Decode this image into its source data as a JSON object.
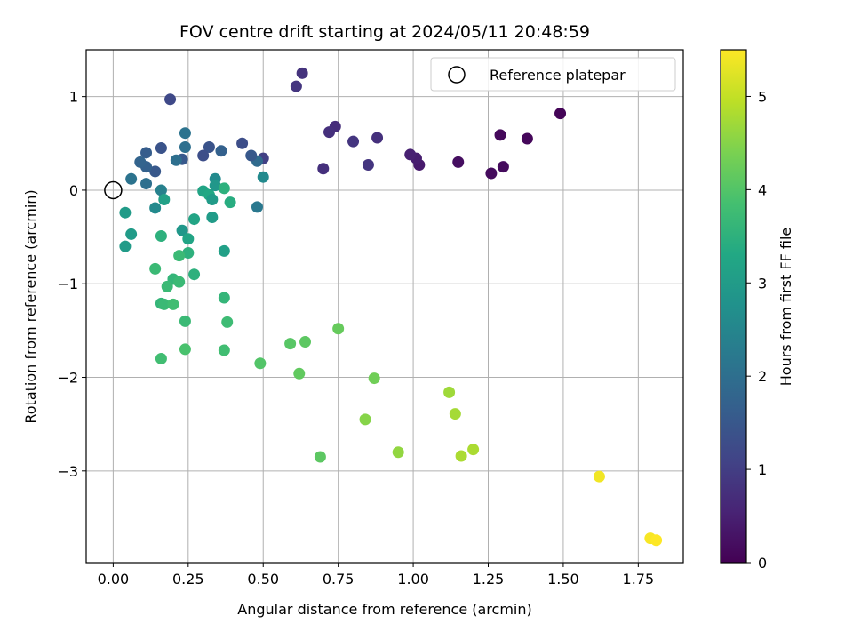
{
  "chart_data": {
    "type": "scatter",
    "title": "FOV centre drift starting at 2024/05/11 20:48:59",
    "xlabel": "Angular distance from reference (arcmin)",
    "ylabel": "Rotation from reference (arcmin)",
    "xlim": [
      -0.09,
      1.9
    ],
    "ylim": [
      -3.98,
      1.5
    ],
    "xticks": [
      0.0,
      0.25,
      0.5,
      0.75,
      1.0,
      1.25,
      1.5,
      1.75
    ],
    "xtick_labels": [
      "0.00",
      "0.25",
      "0.50",
      "0.75",
      "1.00",
      "1.25",
      "1.50",
      "1.75"
    ],
    "yticks": [
      1,
      0,
      -1,
      -2,
      -3
    ],
    "ytick_labels": [
      "1",
      "0",
      "−1",
      "−2",
      "−3"
    ],
    "grid": true,
    "legend": {
      "placement": "top-right",
      "entries": [
        "Reference platepar"
      ]
    },
    "reference_point": {
      "x": 0.0,
      "y": 0.0,
      "marker": "open-circle"
    },
    "colorbar": {
      "label": "Hours from first FF file",
      "min": 0,
      "max": 5.5,
      "ticks": [
        0,
        1,
        2,
        3,
        4,
        5
      ],
      "tick_labels": [
        "0",
        "1",
        "2",
        "3",
        "4",
        "5"
      ],
      "colormap": "viridis"
    },
    "points": [
      {
        "x": 1.49,
        "y": 0.82,
        "c": 0.05
      },
      {
        "x": 1.38,
        "y": 0.55,
        "c": 0.1
      },
      {
        "x": 1.29,
        "y": 0.59,
        "c": 0.12
      },
      {
        "x": 1.3,
        "y": 0.25,
        "c": 0.15
      },
      {
        "x": 1.26,
        "y": 0.18,
        "c": 0.15
      },
      {
        "x": 1.15,
        "y": 0.3,
        "c": 0.2
      },
      {
        "x": 1.02,
        "y": 0.27,
        "c": 0.4
      },
      {
        "x": 1.01,
        "y": 0.34,
        "c": 0.45
      },
      {
        "x": 0.99,
        "y": 0.38,
        "c": 0.5
      },
      {
        "x": 0.88,
        "y": 0.56,
        "c": 0.75
      },
      {
        "x": 0.85,
        "y": 0.27,
        "c": 0.85
      },
      {
        "x": 0.8,
        "y": 0.52,
        "c": 0.85
      },
      {
        "x": 0.74,
        "y": 0.68,
        "c": 0.7
      },
      {
        "x": 0.72,
        "y": 0.62,
        "c": 0.75
      },
      {
        "x": 0.7,
        "y": 0.23,
        "c": 0.75
      },
      {
        "x": 0.63,
        "y": 1.25,
        "c": 0.8
      },
      {
        "x": 0.61,
        "y": 1.11,
        "c": 0.85
      },
      {
        "x": 0.5,
        "y": 0.34,
        "c": 1.05
      },
      {
        "x": 0.5,
        "y": 0.14,
        "c": 2.6
      },
      {
        "x": 0.48,
        "y": 0.31,
        "c": 1.9
      },
      {
        "x": 0.48,
        "y": -0.18,
        "c": 2.2
      },
      {
        "x": 0.46,
        "y": 0.37,
        "c": 1.5
      },
      {
        "x": 0.43,
        "y": 0.5,
        "c": 1.3
      },
      {
        "x": 0.36,
        "y": 0.42,
        "c": 1.7
      },
      {
        "x": 0.32,
        "y": 0.46,
        "c": 1.4
      },
      {
        "x": 0.3,
        "y": 0.37,
        "c": 1.3
      },
      {
        "x": 0.24,
        "y": 0.46,
        "c": 2.0
      },
      {
        "x": 0.24,
        "y": 0.61,
        "c": 2.1
      },
      {
        "x": 0.23,
        "y": 0.33,
        "c": 1.5
      },
      {
        "x": 0.21,
        "y": 0.32,
        "c": 2.0
      },
      {
        "x": 0.19,
        "y": 0.97,
        "c": 1.2
      },
      {
        "x": 0.16,
        "y": 0.45,
        "c": 1.4
      },
      {
        "x": 0.14,
        "y": 0.2,
        "c": 1.5
      },
      {
        "x": 0.11,
        "y": 0.4,
        "c": 1.6
      },
      {
        "x": 0.11,
        "y": 0.25,
        "c": 1.7
      },
      {
        "x": 0.09,
        "y": 0.3,
        "c": 1.75
      },
      {
        "x": 0.11,
        "y": 0.07,
        "c": 2.0
      },
      {
        "x": 0.06,
        "y": 0.12,
        "c": 2.1
      },
      {
        "x": 0.16,
        "y": 0.0,
        "c": 2.4
      },
      {
        "x": 0.14,
        "y": -0.19,
        "c": 2.6
      },
      {
        "x": 0.17,
        "y": -0.1,
        "c": 3.1
      },
      {
        "x": 0.04,
        "y": -0.24,
        "c": 3.0
      },
      {
        "x": 0.06,
        "y": -0.47,
        "c": 3.0
      },
      {
        "x": 0.04,
        "y": -0.6,
        "c": 3.0
      },
      {
        "x": 0.3,
        "y": -0.01,
        "c": 3.2
      },
      {
        "x": 0.32,
        "y": -0.05,
        "c": 3.3
      },
      {
        "x": 0.34,
        "y": 0.12,
        "c": 2.6
      },
      {
        "x": 0.34,
        "y": 0.05,
        "c": 2.9
      },
      {
        "x": 0.33,
        "y": -0.1,
        "c": 3.0
      },
      {
        "x": 0.37,
        "y": 0.02,
        "c": 3.5
      },
      {
        "x": 0.39,
        "y": -0.13,
        "c": 3.4
      },
      {
        "x": 0.33,
        "y": -0.29,
        "c": 3.0
      },
      {
        "x": 0.27,
        "y": -0.31,
        "c": 3.2
      },
      {
        "x": 0.23,
        "y": -0.43,
        "c": 2.9
      },
      {
        "x": 0.25,
        "y": -0.52,
        "c": 3.2
      },
      {
        "x": 0.16,
        "y": -0.49,
        "c": 3.5
      },
      {
        "x": 0.37,
        "y": -0.65,
        "c": 3.1
      },
      {
        "x": 0.25,
        "y": -0.67,
        "c": 3.5
      },
      {
        "x": 0.22,
        "y": -0.7,
        "c": 3.7
      },
      {
        "x": 0.27,
        "y": -0.9,
        "c": 3.5
      },
      {
        "x": 0.14,
        "y": -0.84,
        "c": 3.7
      },
      {
        "x": 0.2,
        "y": -0.95,
        "c": 3.6
      },
      {
        "x": 0.22,
        "y": -0.98,
        "c": 3.7
      },
      {
        "x": 0.18,
        "y": -1.03,
        "c": 3.7
      },
      {
        "x": 0.37,
        "y": -1.15,
        "c": 3.6
      },
      {
        "x": 0.16,
        "y": -1.21,
        "c": 3.6
      },
      {
        "x": 0.17,
        "y": -1.22,
        "c": 3.7
      },
      {
        "x": 0.2,
        "y": -1.22,
        "c": 3.8
      },
      {
        "x": 0.24,
        "y": -1.4,
        "c": 3.7
      },
      {
        "x": 0.38,
        "y": -1.41,
        "c": 3.75
      },
      {
        "x": 0.24,
        "y": -1.7,
        "c": 3.9
      },
      {
        "x": 0.37,
        "y": -1.71,
        "c": 3.8
      },
      {
        "x": 0.16,
        "y": -1.8,
        "c": 3.8
      },
      {
        "x": 0.49,
        "y": -1.85,
        "c": 4.0
      },
      {
        "x": 0.59,
        "y": -1.64,
        "c": 4.05
      },
      {
        "x": 0.64,
        "y": -1.62,
        "c": 4.1
      },
      {
        "x": 0.62,
        "y": -1.96,
        "c": 4.15
      },
      {
        "x": 0.75,
        "y": -1.48,
        "c": 4.2
      },
      {
        "x": 0.87,
        "y": -2.01,
        "c": 4.3
      },
      {
        "x": 0.69,
        "y": -2.85,
        "c": 4.1
      },
      {
        "x": 0.84,
        "y": -2.45,
        "c": 4.5
      },
      {
        "x": 0.95,
        "y": -2.8,
        "c": 4.6
      },
      {
        "x": 1.12,
        "y": -2.16,
        "c": 4.7
      },
      {
        "x": 1.14,
        "y": -2.39,
        "c": 4.75
      },
      {
        "x": 1.16,
        "y": -2.84,
        "c": 4.8
      },
      {
        "x": 1.2,
        "y": -2.77,
        "c": 4.8
      },
      {
        "x": 1.62,
        "y": -3.06,
        "c": 5.4
      },
      {
        "x": 1.79,
        "y": -3.72,
        "c": 5.45
      },
      {
        "x": 1.81,
        "y": -3.74,
        "c": 5.5
      }
    ]
  }
}
